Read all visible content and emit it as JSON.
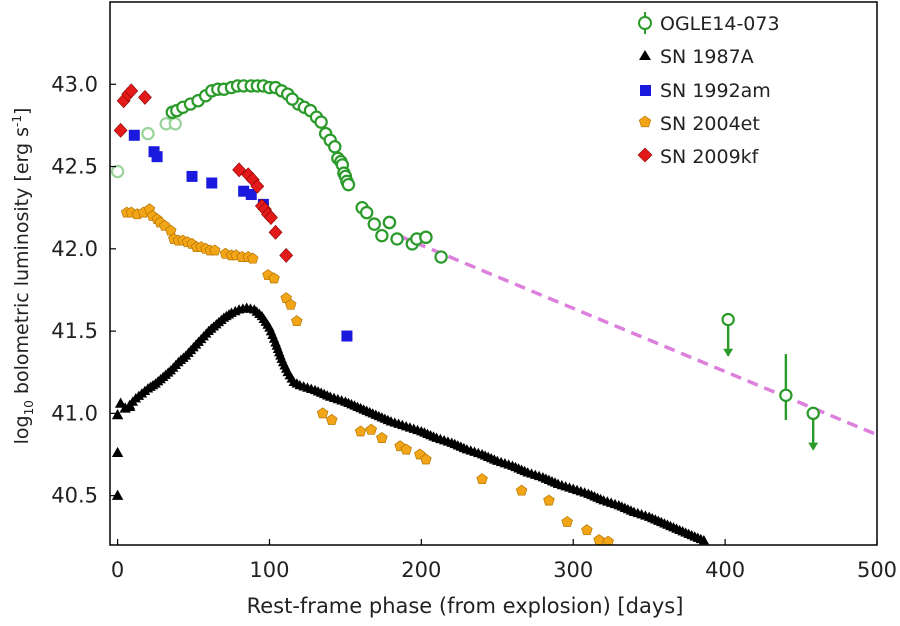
{
  "chart_data": {
    "type": "scatter",
    "title": "",
    "xlabel": "Rest-frame phase (from explosion) [days]",
    "ylabel_main": "log",
    "ylabel_sub": "10",
    "ylabel_rest": " bolometric luminosity [erg s",
    "ylabel_sup": "-1",
    "ylabel_end": "]",
    "xlim": [
      -5,
      500
    ],
    "ylim": [
      40.2,
      43.5
    ],
    "xticks": [
      0,
      100,
      200,
      300,
      400,
      500
    ],
    "yticks": [
      40.5,
      41.0,
      41.5,
      42.0,
      42.5,
      43.0
    ],
    "ytick_labels": [
      "40.5",
      "41.0",
      "41.5",
      "42.0",
      "42.5",
      "43.0"
    ],
    "grid": false,
    "legend_position": "top-right",
    "colors": {
      "ogle": "#2a9a2a",
      "ogle_faint": "#9ad49a",
      "sn1987a": "#000000",
      "sn1992am": "#1a1adf",
      "sn2004et": "#f2a516",
      "sn2009kf": "#e21a1a",
      "fit": "#dd7fdd"
    },
    "series": [
      {
        "name": "OGLE14-073",
        "key": "ogle",
        "marker": "circle-open",
        "points": [
          [
            119,
            42.88
          ],
          [
            123,
            42.86
          ],
          [
            127,
            42.84
          ],
          [
            131,
            42.8
          ],
          [
            134,
            42.77
          ],
          [
            137,
            42.7
          ],
          [
            140,
            42.66
          ],
          [
            143,
            42.62
          ],
          [
            145,
            42.55
          ],
          [
            147,
            42.53
          ],
          [
            148,
            42.51
          ],
          [
            149,
            42.46
          ],
          [
            150,
            42.44
          ],
          [
            151,
            42.41
          ],
          [
            152,
            42.39
          ],
          [
            161,
            42.25
          ],
          [
            164,
            42.22
          ],
          [
            169,
            42.15
          ],
          [
            174,
            42.08
          ],
          [
            179,
            42.16
          ],
          [
            184,
            42.06
          ],
          [
            194,
            42.03
          ],
          [
            197,
            42.06
          ],
          [
            203,
            42.07
          ],
          [
            213,
            41.95
          ],
          [
            36,
            42.83
          ],
          [
            39,
            42.84
          ],
          [
            43,
            42.86
          ],
          [
            48,
            42.88
          ],
          [
            53,
            42.9
          ],
          [
            58,
            42.93
          ],
          [
            62,
            42.96
          ],
          [
            66,
            42.97
          ],
          [
            70,
            42.97
          ],
          [
            75,
            42.98
          ],
          [
            79,
            42.99
          ],
          [
            83,
            42.99
          ],
          [
            88,
            42.99
          ],
          [
            92,
            42.99
          ],
          [
            96,
            42.99
          ],
          [
            100,
            42.98
          ],
          [
            104,
            42.98
          ],
          [
            108,
            42.96
          ],
          [
            112,
            42.94
          ],
          [
            115,
            42.91
          ]
        ],
        "error_bars": [
          [
            179,
            42.16,
            0.04
          ],
          [
            203,
            42.07,
            0.03
          ]
        ],
        "upper_limits": [
          [
            402,
            41.57
          ],
          [
            458,
            41.0
          ]
        ],
        "detection_with_error": [
          [
            440,
            41.11,
            0.25
          ]
        ]
      },
      {
        "name": "",
        "key": "ogle_faint",
        "marker": "circle-open",
        "points": [
          [
            0,
            42.47
          ],
          [
            20,
            42.7
          ],
          [
            32,
            42.76
          ],
          [
            38,
            42.76
          ]
        ]
      },
      {
        "name": "SN 1987A",
        "key": "sn1987a",
        "marker": "triangle",
        "points": [
          [
            0,
            40.5
          ],
          [
            0,
            40.76
          ],
          [
            0,
            40.99
          ],
          [
            2,
            41.06
          ],
          [
            5,
            41.03
          ],
          [
            8,
            41.04
          ]
        ]
      },
      {
        "name": "SN 1992am",
        "key": "sn1992am",
        "marker": "square",
        "points": [
          [
            11,
            42.69
          ],
          [
            24,
            42.59
          ],
          [
            26,
            42.56
          ],
          [
            49,
            42.44
          ],
          [
            62,
            42.4
          ],
          [
            83,
            42.35
          ],
          [
            88,
            42.33
          ],
          [
            96,
            42.27
          ],
          [
            151,
            41.47
          ]
        ]
      },
      {
        "name": "SN 2004et",
        "key": "sn2004et",
        "marker": "pentagon",
        "points": [
          [
            6,
            42.22
          ],
          [
            9,
            42.22
          ],
          [
            13,
            42.21
          ],
          [
            17,
            42.22
          ],
          [
            21,
            42.24
          ],
          [
            23,
            42.2
          ],
          [
            26,
            42.18
          ],
          [
            28,
            42.16
          ],
          [
            31,
            42.14
          ],
          [
            35,
            42.11
          ],
          [
            37,
            42.06
          ],
          [
            40,
            42.05
          ],
          [
            43,
            42.05
          ],
          [
            46,
            42.04
          ],
          [
            49,
            42.03
          ],
          [
            52,
            42.01
          ],
          [
            55,
            42.01
          ],
          [
            58,
            42.0
          ],
          [
            61,
            41.99
          ],
          [
            64,
            41.99
          ],
          [
            71,
            41.97
          ],
          [
            75,
            41.96
          ],
          [
            78,
            41.96
          ],
          [
            82,
            41.95
          ],
          [
            86,
            41.95
          ],
          [
            89,
            41.94
          ],
          [
            99,
            41.84
          ],
          [
            103,
            41.82
          ],
          [
            111,
            41.7
          ],
          [
            114,
            41.66
          ],
          [
            118,
            41.56
          ],
          [
            135,
            41.0
          ],
          [
            141,
            40.96
          ],
          [
            160,
            40.89
          ],
          [
            167,
            40.9
          ],
          [
            174,
            40.85
          ],
          [
            186,
            40.8
          ],
          [
            190,
            40.78
          ],
          [
            199,
            40.75
          ],
          [
            203,
            40.72
          ],
          [
            240,
            40.6
          ],
          [
            266,
            40.53
          ],
          [
            284,
            40.47
          ],
          [
            296,
            40.34
          ],
          [
            309,
            40.29
          ],
          [
            317,
            40.23
          ],
          [
            323,
            40.22
          ]
        ]
      },
      {
        "name": "SN 2009kf",
        "key": "sn2009kf",
        "marker": "diamond",
        "points": [
          [
            2,
            42.72
          ],
          [
            4,
            42.9
          ],
          [
            7,
            42.94
          ],
          [
            9,
            42.96
          ],
          [
            18,
            42.92
          ],
          [
            80,
            42.48
          ],
          [
            86,
            42.45
          ],
          [
            89,
            42.42
          ],
          [
            92,
            42.38
          ],
          [
            95,
            42.26
          ],
          [
            97,
            42.24
          ],
          [
            99,
            42.21
          ],
          [
            101,
            42.19
          ],
          [
            104,
            42.1
          ],
          [
            111,
            41.96
          ]
        ]
      },
      {
        "name": "",
        "key": "fit",
        "marker": "dashed-line",
        "points": [
          [
            185,
            42.08
          ],
          [
            500,
            40.87
          ]
        ]
      }
    ],
    "sn1987a_curve": [
      [
        8,
        41.05
      ],
      [
        12,
        41.09
      ],
      [
        16,
        41.12
      ],
      [
        20,
        41.15
      ],
      [
        25,
        41.18
      ],
      [
        30,
        41.22
      ],
      [
        35,
        41.26
      ],
      [
        40,
        41.31
      ],
      [
        45,
        41.35
      ],
      [
        50,
        41.4
      ],
      [
        55,
        41.45
      ],
      [
        60,
        41.5
      ],
      [
        65,
        41.54
      ],
      [
        70,
        41.58
      ],
      [
        75,
        41.61
      ],
      [
        80,
        41.63
      ],
      [
        85,
        41.64
      ],
      [
        90,
        41.63
      ],
      [
        95,
        41.59
      ],
      [
        100,
        41.52
      ],
      [
        104,
        41.43
      ],
      [
        108,
        41.33
      ],
      [
        112,
        41.25
      ],
      [
        116,
        41.19
      ],
      [
        120,
        41.17
      ],
      [
        130,
        41.14
      ],
      [
        140,
        41.1
      ],
      [
        150,
        41.07
      ],
      [
        160,
        41.03
      ],
      [
        170,
        40.99
      ],
      [
        180,
        40.95
      ],
      [
        190,
        40.92
      ],
      [
        200,
        40.89
      ],
      [
        210,
        40.85
      ],
      [
        220,
        40.82
      ],
      [
        230,
        40.78
      ],
      [
        240,
        40.75
      ],
      [
        250,
        40.71
      ],
      [
        260,
        40.68
      ],
      [
        270,
        40.64
      ],
      [
        280,
        40.61
      ],
      [
        290,
        40.57
      ],
      [
        300,
        40.54
      ],
      [
        310,
        40.51
      ],
      [
        320,
        40.47
      ],
      [
        330,
        40.44
      ],
      [
        340,
        40.4
      ],
      [
        350,
        40.37
      ],
      [
        360,
        40.33
      ],
      [
        370,
        40.29
      ],
      [
        380,
        40.25
      ],
      [
        388,
        40.22
      ]
    ]
  }
}
